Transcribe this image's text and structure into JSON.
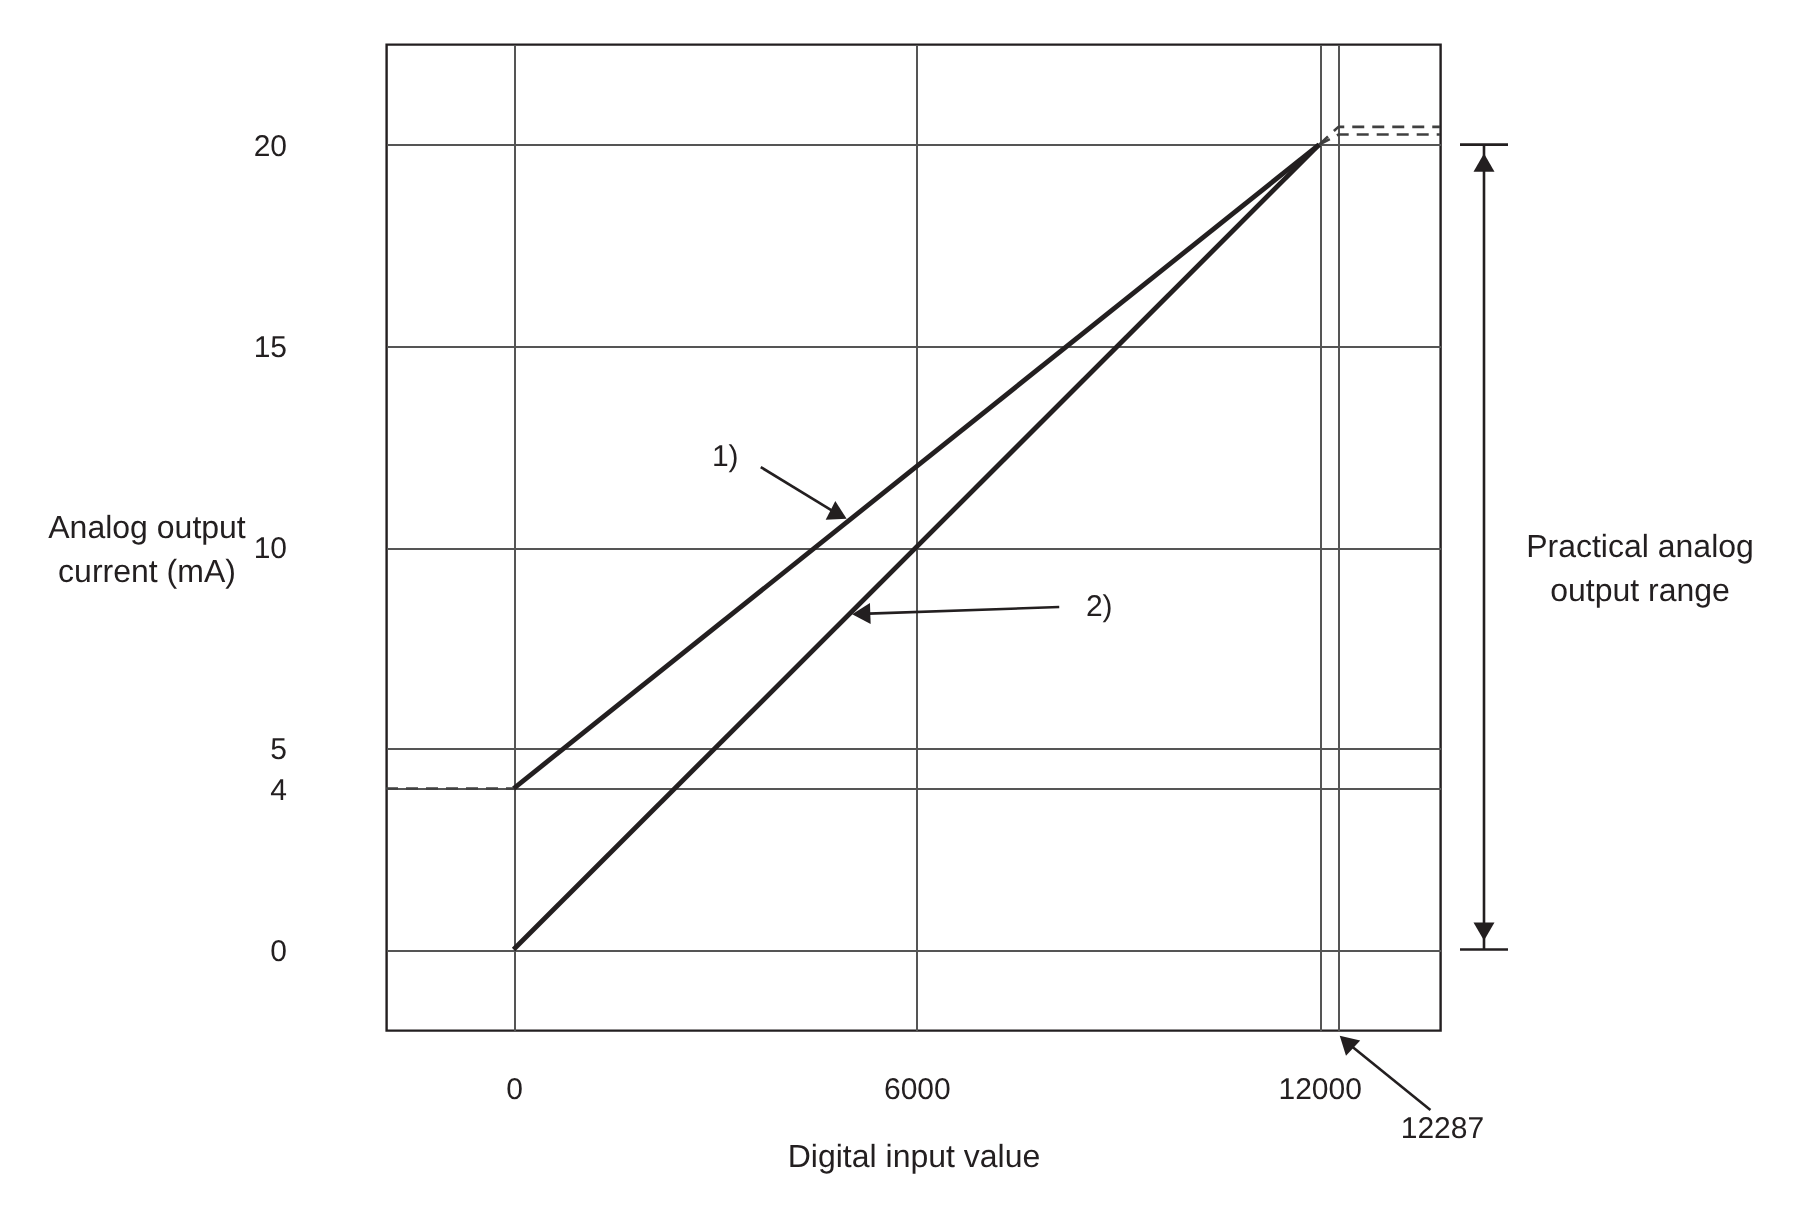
{
  "chart_data": {
    "type": "line",
    "xlabel": "Digital input value",
    "ylabel": "Analog output current (mA)",
    "xlim": [
      -1900,
      13800
    ],
    "ylim": [
      -2,
      22.5
    ],
    "xticks": [
      0,
      6000,
      12000,
      {
        "value": 12287,
        "label": null
      }
    ],
    "yticks": [
      0,
      4,
      5,
      10,
      15,
      20
    ],
    "grid": true,
    "series": [
      {
        "color": "#231f20",
        "line_style": "solid",
        "x": [
          0,
          12000
        ],
        "values": [
          4,
          20
        ]
      },
      {
        "color": "#231f20",
        "line_style": "solid",
        "x": [
          0,
          12000
        ],
        "values": [
          0,
          20
        ]
      },
      {
        "color": "#404040",
        "line_style": "dashed",
        "x": [
          -1900,
          0
        ],
        "values": [
          4,
          4
        ]
      },
      {
        "color": "#404040",
        "line_style": "dashed",
        "x": [
          12000,
          12287,
          13800
        ],
        "values": [
          20,
          20.44,
          20.44
        ]
      },
      {
        "color": "#404040",
        "line_style": "dashed",
        "x": [
          12000,
          12287,
          13800
        ],
        "values": [
          20,
          20.25,
          20.25
        ]
      }
    ],
    "annotations": [
      {
        "text": "1)",
        "x": 5000,
        "y": 10.67
      },
      {
        "text": "2)",
        "x": 5000,
        "y": 8.33
      },
      "12287",
      "Practical analog output range"
    ]
  }
}
